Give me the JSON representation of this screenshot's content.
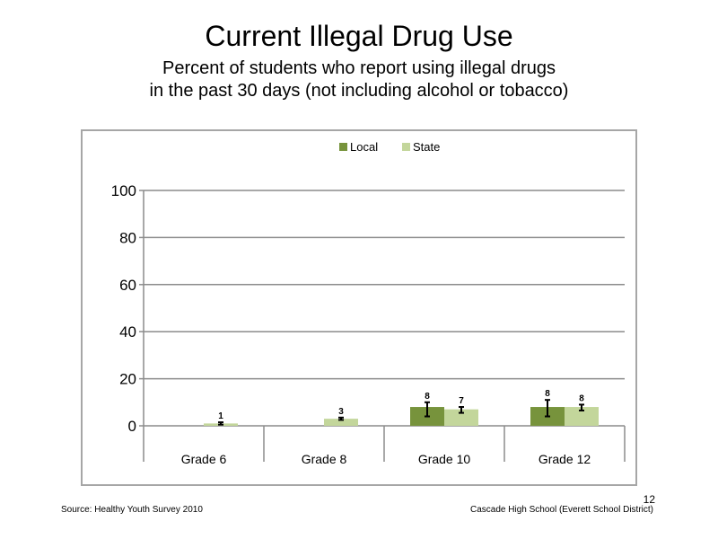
{
  "slide": {
    "title": "Current Illegal Drug Use",
    "subtitle_line1": "Percent of students who report using illegal drugs",
    "subtitle_line2": "in the past 30 days (not including  alcohol or tobacco)",
    "source": "Source: Healthy Youth Survey 2010",
    "school": "Cascade High School (Everett School District)",
    "page_number": "12"
  },
  "chart_data": {
    "type": "bar",
    "categories": [
      "Grade 6",
      "Grade 8",
      "Grade 10",
      "Grade 12"
    ],
    "series": [
      {
        "name": "Local",
        "color": "#77933c",
        "values": [
          null,
          null,
          8,
          8
        ],
        "labels": [
          "",
          "",
          "8",
          "8"
        ],
        "error": [
          null,
          null,
          [
            4,
            10
          ],
          [
            4,
            11
          ]
        ]
      },
      {
        "name": "State",
        "color": "#c3d69b",
        "values": [
          1,
          3,
          7,
          8
        ],
        "labels": [
          "1",
          "3",
          "7",
          "8"
        ],
        "error": [
          [
            0.5,
            1.5
          ],
          [
            2.5,
            3.5
          ],
          [
            5.5,
            8
          ],
          [
            6.5,
            9
          ]
        ]
      }
    ],
    "ylim": [
      0,
      100
    ],
    "yticks": [
      "0",
      "20",
      "40",
      "60",
      "80",
      "100"
    ],
    "grid": true,
    "legend": "top-center"
  }
}
